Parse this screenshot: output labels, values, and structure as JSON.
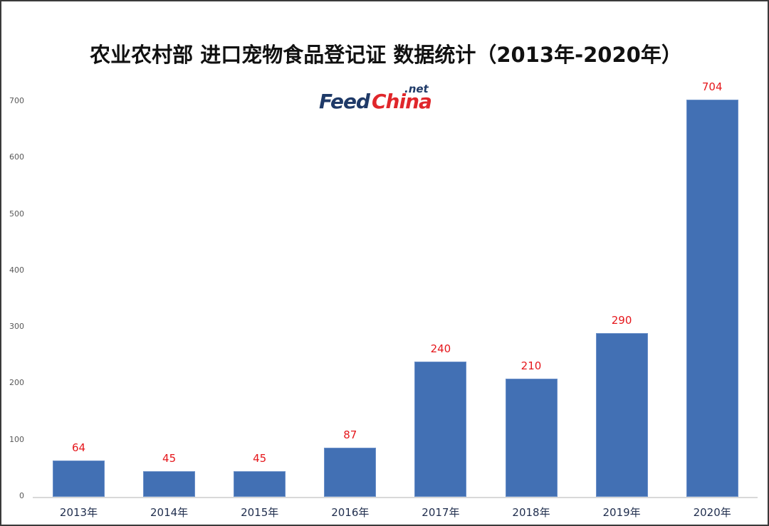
{
  "chart_data": {
    "type": "bar",
    "title": "农业农村部 进口宠物食品登记证 数据统计（2013年-2020年）",
    "categories": [
      "2013年",
      "2014年",
      "2015年",
      "2016年",
      "2017年",
      "2018年",
      "2019年",
      "2020年"
    ],
    "values": [
      64,
      45,
      45,
      87,
      240,
      210,
      290,
      704
    ],
    "data_labels": [
      "64",
      "45",
      "45",
      "87",
      "240",
      "210",
      "290",
      "704"
    ],
    "xlabel": "",
    "ylabel": "",
    "ylim": [
      0,
      700
    ],
    "yticks": [
      0,
      100,
      200,
      300,
      400,
      500,
      600,
      700
    ],
    "ytick_labels": [
      "0",
      "100",
      "200",
      "300",
      "400",
      "500",
      "600",
      "700"
    ],
    "grid": false,
    "legend": null,
    "bar_color": "#4270b4",
    "label_color": "#e5161b"
  },
  "logo": {
    "part1": "Feed",
    "part2": "China",
    "suffix": ".net"
  }
}
